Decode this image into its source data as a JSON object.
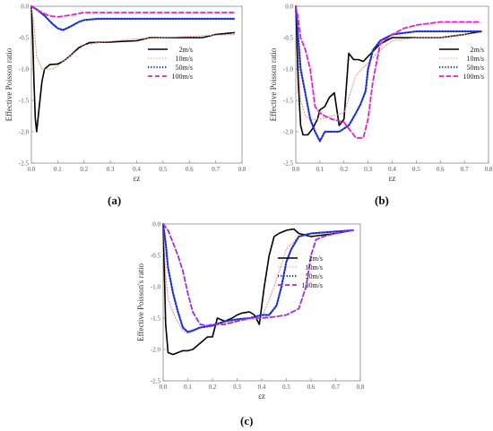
{
  "panel_labels": {
    "a": "(a)",
    "b": "(b)",
    "c": "(c)"
  },
  "chart_data": [
    {
      "id": "a",
      "type": "line",
      "ylabel": "Effective Poisson ratio",
      "xlabel": "εz",
      "xlim": [
        0.0,
        0.8
      ],
      "ylim": [
        -2.5,
        0.0
      ],
      "xticks": [
        "0.0",
        "0.1",
        "0.2",
        "0.3",
        "0.4",
        "0.5",
        "0.6",
        "0.7",
        "0.8"
      ],
      "yticks": [
        "0.0",
        "-0.5",
        "-1.0",
        "-1.5",
        "-2.0",
        "-2.5"
      ],
      "legend_position": "right",
      "series": [
        {
          "name": "2m/s",
          "color": "#000000",
          "style": "solid",
          "width": 1.6,
          "x": [
            0.0,
            0.005,
            0.01,
            0.015,
            0.02,
            0.03,
            0.04,
            0.05,
            0.07,
            0.1,
            0.12,
            0.15,
            0.18,
            0.22,
            0.3,
            0.4,
            0.45,
            0.6,
            0.65,
            0.7,
            0.77
          ],
          "y": [
            0.0,
            -0.5,
            -1.2,
            -1.8,
            -2.0,
            -1.6,
            -1.2,
            -1.0,
            -0.93,
            -0.92,
            -0.88,
            -0.78,
            -0.66,
            -0.58,
            -0.57,
            -0.55,
            -0.5,
            -0.5,
            -0.5,
            -0.45,
            -0.42
          ]
        },
        {
          "name": "10m/s",
          "color": "#e8897e",
          "style": "dotted",
          "width": 1.0,
          "x": [
            0.0,
            0.01,
            0.02,
            0.04,
            0.06,
            0.08,
            0.1,
            0.13,
            0.16,
            0.2,
            0.25,
            0.3,
            0.4,
            0.5,
            0.6,
            0.7,
            0.77
          ],
          "y": [
            0.0,
            -0.3,
            -0.8,
            -1.0,
            -1.0,
            -1.0,
            -0.95,
            -0.85,
            -0.75,
            -0.62,
            -0.58,
            -0.56,
            -0.52,
            -0.5,
            -0.48,
            -0.46,
            -0.45
          ]
        },
        {
          "name": "50m/s",
          "color": "#1c2fd1",
          "style": "dotted",
          "width": 2.2,
          "x": [
            0.0,
            0.02,
            0.05,
            0.08,
            0.1,
            0.12,
            0.15,
            0.18,
            0.2,
            0.25,
            0.3,
            0.4,
            0.5,
            0.6,
            0.7,
            0.77
          ],
          "y": [
            0.0,
            -0.05,
            -0.15,
            -0.28,
            -0.35,
            -0.38,
            -0.32,
            -0.25,
            -0.22,
            -0.2,
            -0.2,
            -0.2,
            -0.2,
            -0.2,
            -0.2,
            -0.2
          ]
        },
        {
          "name": "100m/s",
          "color": "#e020c8",
          "style": "dashed",
          "width": 1.8,
          "x": [
            0.0,
            0.02,
            0.04,
            0.06,
            0.08,
            0.1,
            0.15,
            0.2,
            0.3,
            0.4,
            0.5,
            0.6,
            0.7,
            0.77
          ],
          "y": [
            0.0,
            -0.05,
            -0.1,
            -0.14,
            -0.16,
            -0.17,
            -0.14,
            -0.1,
            -0.1,
            -0.1,
            -0.1,
            -0.1,
            -0.1,
            -0.1
          ]
        }
      ]
    },
    {
      "id": "b",
      "type": "line",
      "ylabel": "Effective Poisson ratio",
      "xlabel": "εz",
      "xlim": [
        0.0,
        0.8
      ],
      "ylim": [
        -2.5,
        0.0
      ],
      "xticks": [
        "0.0",
        "0.1",
        "0.2",
        "0.3",
        "0.4",
        "0.5",
        "0.6",
        "0.7",
        "0.8"
      ],
      "yticks": [
        "0.0",
        "-0.5",
        "-1.0",
        "-1.5",
        "-2.0",
        "-2.5"
      ],
      "legend_position": "right",
      "series": [
        {
          "name": "2m/s",
          "color": "#000000",
          "style": "solid",
          "width": 1.6,
          "x": [
            0.0,
            0.01,
            0.02,
            0.03,
            0.05,
            0.07,
            0.09,
            0.1,
            0.12,
            0.14,
            0.16,
            0.18,
            0.2,
            0.22,
            0.24,
            0.26,
            0.28,
            0.3,
            0.35,
            0.4,
            0.5,
            0.6,
            0.7,
            0.77
          ],
          "y": [
            0.0,
            -1.2,
            -1.9,
            -2.05,
            -2.05,
            -1.95,
            -1.8,
            -1.65,
            -1.6,
            -1.45,
            -1.38,
            -1.9,
            -1.8,
            -0.75,
            -0.85,
            -0.85,
            -0.88,
            -0.8,
            -0.6,
            -0.5,
            -0.5,
            -0.5,
            -0.45,
            -0.4
          ]
        },
        {
          "name": "10m/s",
          "color": "#e8897e",
          "style": "dotted",
          "width": 1.0,
          "x": [
            0.0,
            0.02,
            0.04,
            0.06,
            0.08,
            0.1,
            0.15,
            0.2,
            0.25,
            0.3,
            0.35,
            0.4,
            0.5,
            0.6,
            0.7,
            0.77
          ],
          "y": [
            0.0,
            -1.5,
            -1.75,
            -1.8,
            -1.8,
            -1.8,
            -1.75,
            -1.7,
            -1.1,
            -0.9,
            -0.7,
            -0.55,
            -0.5,
            -0.5,
            -0.45,
            -0.42
          ]
        },
        {
          "name": "50m/s",
          "color": "#1c2fd1",
          "style": "dotted",
          "width": 2.2,
          "x": [
            0.0,
            0.01,
            0.02,
            0.04,
            0.06,
            0.08,
            0.1,
            0.12,
            0.15,
            0.18,
            0.2,
            0.22,
            0.25,
            0.27,
            0.29,
            0.3,
            0.32,
            0.35,
            0.4,
            0.5,
            0.6,
            0.7,
            0.77
          ],
          "y": [
            0.0,
            -0.5,
            -1.0,
            -1.4,
            -1.8,
            -2.0,
            -2.15,
            -2.0,
            -2.0,
            -2.0,
            -1.95,
            -1.9,
            -1.7,
            -1.55,
            -1.35,
            -1.0,
            -0.7,
            -0.55,
            -0.45,
            -0.4,
            -0.4,
            -0.4,
            -0.4
          ]
        },
        {
          "name": "100m/s",
          "color": "#e020c8",
          "style": "dashed",
          "width": 1.8,
          "x": [
            0.0,
            0.01,
            0.02,
            0.04,
            0.06,
            0.08,
            0.1,
            0.12,
            0.15,
            0.2,
            0.25,
            0.28,
            0.3,
            0.32,
            0.35,
            0.4,
            0.45,
            0.5,
            0.6,
            0.7,
            0.76
          ],
          "y": [
            0.0,
            -0.2,
            -0.5,
            -0.7,
            -1.0,
            -1.6,
            -1.7,
            -1.75,
            -1.8,
            -1.85,
            -2.1,
            -2.1,
            -1.8,
            -1.2,
            -0.6,
            -0.45,
            -0.35,
            -0.3,
            -0.25,
            -0.25,
            -0.25
          ]
        }
      ]
    },
    {
      "id": "c",
      "type": "line",
      "ylabel": "Effective Poisson's ratio",
      "xlabel": "εz",
      "xlim": [
        0.0,
        0.8
      ],
      "ylim": [
        -2.5,
        0.0
      ],
      "xticks": [
        "0.0",
        "0.1",
        "0.2",
        "0.3",
        "0.4",
        "0.5",
        "0.6",
        "0.7",
        "0.8"
      ],
      "yticks": [
        "0.0",
        "-0.5",
        "-1.0",
        "-1.5",
        "-2.0",
        "-2.5"
      ],
      "legend_position": "right",
      "series": [
        {
          "name": "2m/s",
          "color": "#000000",
          "style": "solid",
          "width": 1.6,
          "x": [
            0.0,
            0.01,
            0.02,
            0.04,
            0.06,
            0.08,
            0.1,
            0.12,
            0.15,
            0.18,
            0.2,
            0.22,
            0.25,
            0.28,
            0.3,
            0.32,
            0.35,
            0.37,
            0.39,
            0.41,
            0.43,
            0.45,
            0.47,
            0.5,
            0.53,
            0.55,
            0.6,
            0.7,
            0.77
          ],
          "y": [
            0.0,
            -1.6,
            -2.05,
            -2.08,
            -2.05,
            -2.02,
            -2.02,
            -2.0,
            -1.9,
            -1.8,
            -1.8,
            -1.5,
            -1.55,
            -1.5,
            -1.45,
            -1.42,
            -1.4,
            -1.45,
            -1.6,
            -1.0,
            -0.5,
            -0.2,
            -0.15,
            -0.1,
            -0.08,
            -0.15,
            -0.2,
            -0.15,
            -0.1
          ]
        },
        {
          "name": "10m/s",
          "color": "#e8897e",
          "style": "dotted",
          "width": 1.0,
          "x": [
            0.0,
            0.01,
            0.02,
            0.05,
            0.08,
            0.1,
            0.15,
            0.2,
            0.3,
            0.4,
            0.45,
            0.5,
            0.55,
            0.6,
            0.7,
            0.77
          ],
          "y": [
            0.0,
            -0.8,
            -1.2,
            -1.5,
            -1.7,
            -1.75,
            -1.65,
            -1.6,
            -1.55,
            -1.5,
            -1.0,
            -0.4,
            -0.2,
            -0.15,
            -0.12,
            -0.1
          ]
        },
        {
          "name": "50m/s",
          "color": "#1c2fd1",
          "style": "dotted",
          "width": 2.2,
          "x": [
            0.0,
            0.01,
            0.02,
            0.04,
            0.06,
            0.08,
            0.1,
            0.12,
            0.15,
            0.2,
            0.25,
            0.3,
            0.35,
            0.4,
            0.43,
            0.46,
            0.48,
            0.5,
            0.52,
            0.55,
            0.6,
            0.7,
            0.77
          ],
          "y": [
            0.0,
            -0.3,
            -0.7,
            -1.1,
            -1.4,
            -1.65,
            -1.72,
            -1.7,
            -1.65,
            -1.62,
            -1.55,
            -1.52,
            -1.5,
            -1.45,
            -1.45,
            -1.3,
            -1.0,
            -0.6,
            -0.4,
            -0.2,
            -0.15,
            -0.12,
            -0.1
          ]
        },
        {
          "name": "100m/s",
          "color": "#9b30e0",
          "style": "dashed",
          "width": 1.8,
          "x": [
            0.0,
            0.02,
            0.04,
            0.06,
            0.08,
            0.1,
            0.12,
            0.15,
            0.18,
            0.2,
            0.25,
            0.3,
            0.35,
            0.4,
            0.45,
            0.5,
            0.55,
            0.58,
            0.6,
            0.62,
            0.65,
            0.7,
            0.77
          ],
          "y": [
            0.0,
            -0.1,
            -0.3,
            -0.5,
            -0.75,
            -1.1,
            -1.4,
            -1.6,
            -1.62,
            -1.6,
            -1.6,
            -1.55,
            -1.5,
            -1.5,
            -1.48,
            -1.45,
            -1.35,
            -1.0,
            -0.5,
            -0.25,
            -0.2,
            -0.15,
            -0.1
          ]
        }
      ]
    }
  ]
}
